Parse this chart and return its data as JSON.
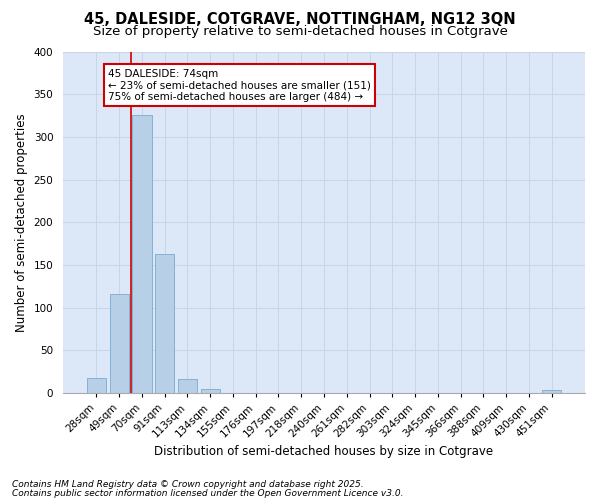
{
  "title1": "45, DALESIDE, COTGRAVE, NOTTINGHAM, NG12 3QN",
  "title2": "Size of property relative to semi-detached houses in Cotgrave",
  "xlabel": "Distribution of semi-detached houses by size in Cotgrave",
  "ylabel": "Number of semi-detached properties",
  "categories": [
    "28sqm",
    "49sqm",
    "70sqm",
    "91sqm",
    "113sqm",
    "134sqm",
    "155sqm",
    "176sqm",
    "197sqm",
    "218sqm",
    "240sqm",
    "261sqm",
    "282sqm",
    "303sqm",
    "324sqm",
    "345sqm",
    "366sqm",
    "388sqm",
    "409sqm",
    "430sqm",
    "451sqm"
  ],
  "values": [
    18,
    116,
    326,
    163,
    17,
    5,
    0,
    0,
    0,
    0,
    0,
    0,
    0,
    0,
    0,
    0,
    0,
    0,
    0,
    0,
    4
  ],
  "bar_color": "#b8cfe8",
  "bar_edge_color": "#7aaad0",
  "grid_color": "#c8d4e8",
  "background_color": "#dce8f8",
  "annotation_text": "45 DALESIDE: 74sqm\n← 23% of semi-detached houses are smaller (151)\n75% of semi-detached houses are larger (484) →",
  "annotation_box_color": "#ffffff",
  "annotation_box_edge_color": "#cc0000",
  "vline_x_index": 2.0,
  "vline_color": "#cc0000",
  "footer1": "Contains HM Land Registry data © Crown copyright and database right 2025.",
  "footer2": "Contains public sector information licensed under the Open Government Licence v3.0.",
  "ylim": [
    0,
    400
  ],
  "yticks": [
    0,
    50,
    100,
    150,
    200,
    250,
    300,
    350,
    400
  ],
  "title_fontsize": 10.5,
  "subtitle_fontsize": 9.5,
  "axis_label_fontsize": 8.5,
  "tick_fontsize": 7.5,
  "annotation_fontsize": 7.5,
  "footer_fontsize": 6.5
}
